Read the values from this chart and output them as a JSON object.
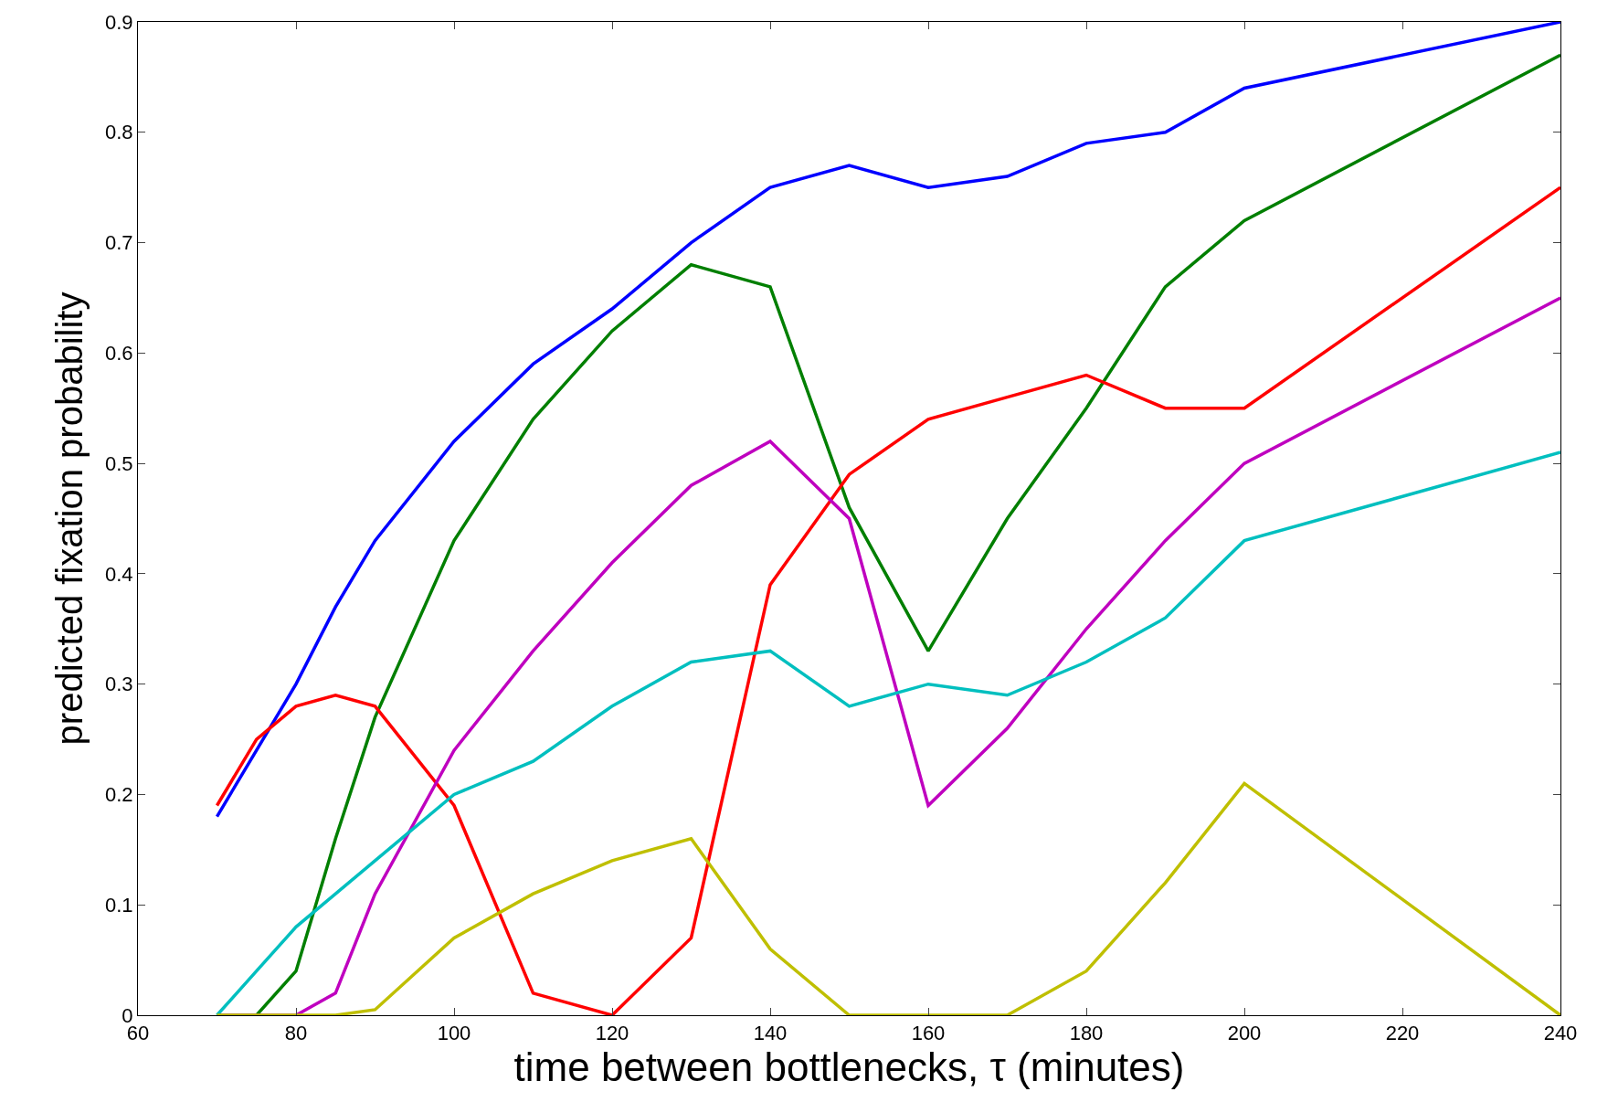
{
  "chart_data": {
    "type": "line",
    "xlabel": "time between bottlenecks, τ (minutes)",
    "ylabel": "predicted fixation probability",
    "xlim": [
      60,
      240
    ],
    "xticks": [
      60,
      80,
      100,
      120,
      140,
      160,
      180,
      200,
      220,
      240
    ],
    "ylim": [
      0,
      0.9
    ],
    "yticks": [
      0,
      0.1,
      0.2,
      0.3,
      0.4,
      0.5,
      0.6,
      0.7,
      0.8,
      0.9
    ],
    "legend": false,
    "marker": "none",
    "line_style": "solid",
    "series": [
      {
        "color": "#0000ff",
        "x": [
          70,
          80,
          85,
          90,
          100,
          110,
          120,
          130,
          140,
          150,
          160,
          170,
          180,
          190,
          200,
          240
        ],
        "values": [
          0.18,
          0.3,
          0.37,
          0.43,
          0.52,
          0.59,
          0.64,
          0.7,
          0.75,
          0.77,
          0.75,
          0.76,
          0.79,
          0.8,
          0.84,
          0.9
        ]
      },
      {
        "color": "#007f00",
        "x": [
          70,
          75,
          80,
          85,
          90,
          100,
          110,
          120,
          130,
          140,
          150,
          160,
          170,
          180,
          190,
          200,
          240
        ],
        "values": [
          0,
          0,
          0.04,
          0.16,
          0.27,
          0.43,
          0.54,
          0.62,
          0.68,
          0.66,
          0.46,
          0.33,
          0.45,
          0.55,
          0.66,
          0.72,
          0.87
        ]
      },
      {
        "color": "#ff0000",
        "x": [
          70,
          75,
          80,
          85,
          90,
          100,
          110,
          120,
          130,
          140,
          150,
          160,
          170,
          180,
          190,
          200,
          240
        ],
        "values": [
          0.19,
          0.25,
          0.28,
          0.29,
          0.28,
          0.19,
          0.02,
          0,
          0.07,
          0.39,
          0.49,
          0.54,
          0.56,
          0.58,
          0.55,
          0.55,
          0.75
        ]
      },
      {
        "color": "#bf00bf",
        "x": [
          70,
          80,
          85,
          90,
          100,
          110,
          120,
          130,
          140,
          150,
          160,
          170,
          180,
          190,
          200,
          240
        ],
        "values": [
          0,
          0,
          0.02,
          0.11,
          0.24,
          0.33,
          0.41,
          0.48,
          0.52,
          0.45,
          0.19,
          0.26,
          0.35,
          0.43,
          0.5,
          0.65
        ]
      },
      {
        "color": "#00bfbf",
        "x": [
          70,
          75,
          80,
          85,
          90,
          100,
          110,
          120,
          130,
          140,
          150,
          160,
          170,
          180,
          190,
          200,
          240
        ],
        "values": [
          0,
          0.04,
          0.08,
          0.11,
          0.14,
          0.2,
          0.23,
          0.28,
          0.32,
          0.33,
          0.28,
          0.3,
          0.29,
          0.32,
          0.36,
          0.43,
          0.51
        ]
      },
      {
        "color": "#bfbf00",
        "x": [
          70,
          80,
          85,
          90,
          100,
          110,
          120,
          130,
          140,
          150,
          160,
          170,
          180,
          190,
          200,
          240
        ],
        "values": [
          0,
          0,
          0,
          0.005,
          0.07,
          0.11,
          0.14,
          0.16,
          0.06,
          0,
          0,
          0,
          0.04,
          0.12,
          0.21,
          0
        ]
      }
    ]
  }
}
